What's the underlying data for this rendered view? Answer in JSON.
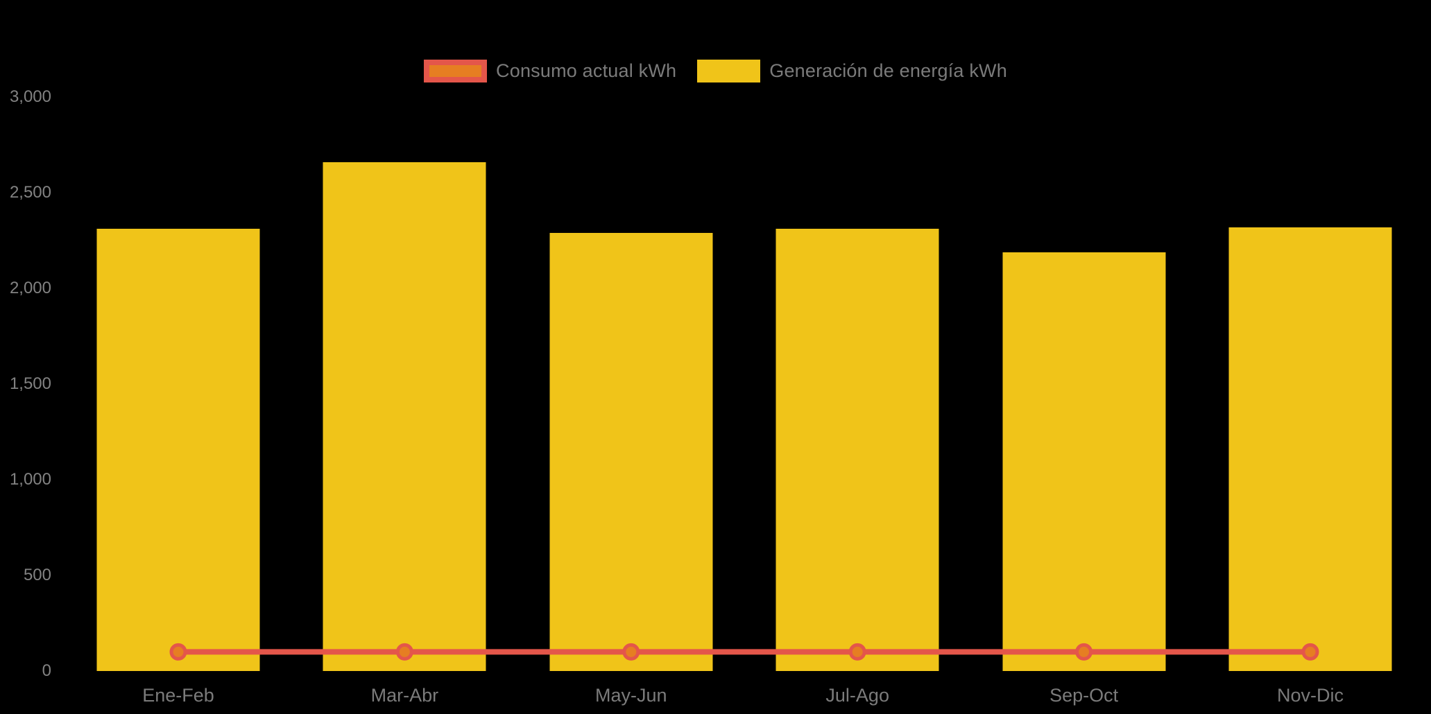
{
  "chart_data": {
    "type": "bar",
    "title": "",
    "xlabel": "",
    "ylabel": "",
    "categories": [
      "Ene-Feb",
      "Mar-Abr",
      "May-Jun",
      "Jul-Ago",
      "Sep-Oct",
      "Nov-Dic"
    ],
    "series": [
      {
        "name": "Consumo actual kWh",
        "type": "line",
        "values": [
          100,
          100,
          100,
          100,
          100,
          100
        ],
        "color": "#E4564A",
        "marker_fill": "#E67E22"
      },
      {
        "name": "Generación de energía kWh",
        "type": "bar",
        "values": [
          2310,
          2660,
          2290,
          2310,
          2190,
          2320
        ],
        "color": "#F0C419"
      }
    ],
    "ylim": [
      0,
      3000
    ],
    "ytick_step": 500,
    "ytick_labels": [
      "0",
      "500",
      "1,000",
      "1,500",
      "2,000",
      "2,500",
      "3,000"
    ],
    "grid": false,
    "legend_position": "top-center"
  },
  "colors": {
    "background": "#000000",
    "axis_text": "#7b7b7b",
    "bar": "#F0C419",
    "line": "#E4564A",
    "marker_fill": "#E67E22"
  }
}
